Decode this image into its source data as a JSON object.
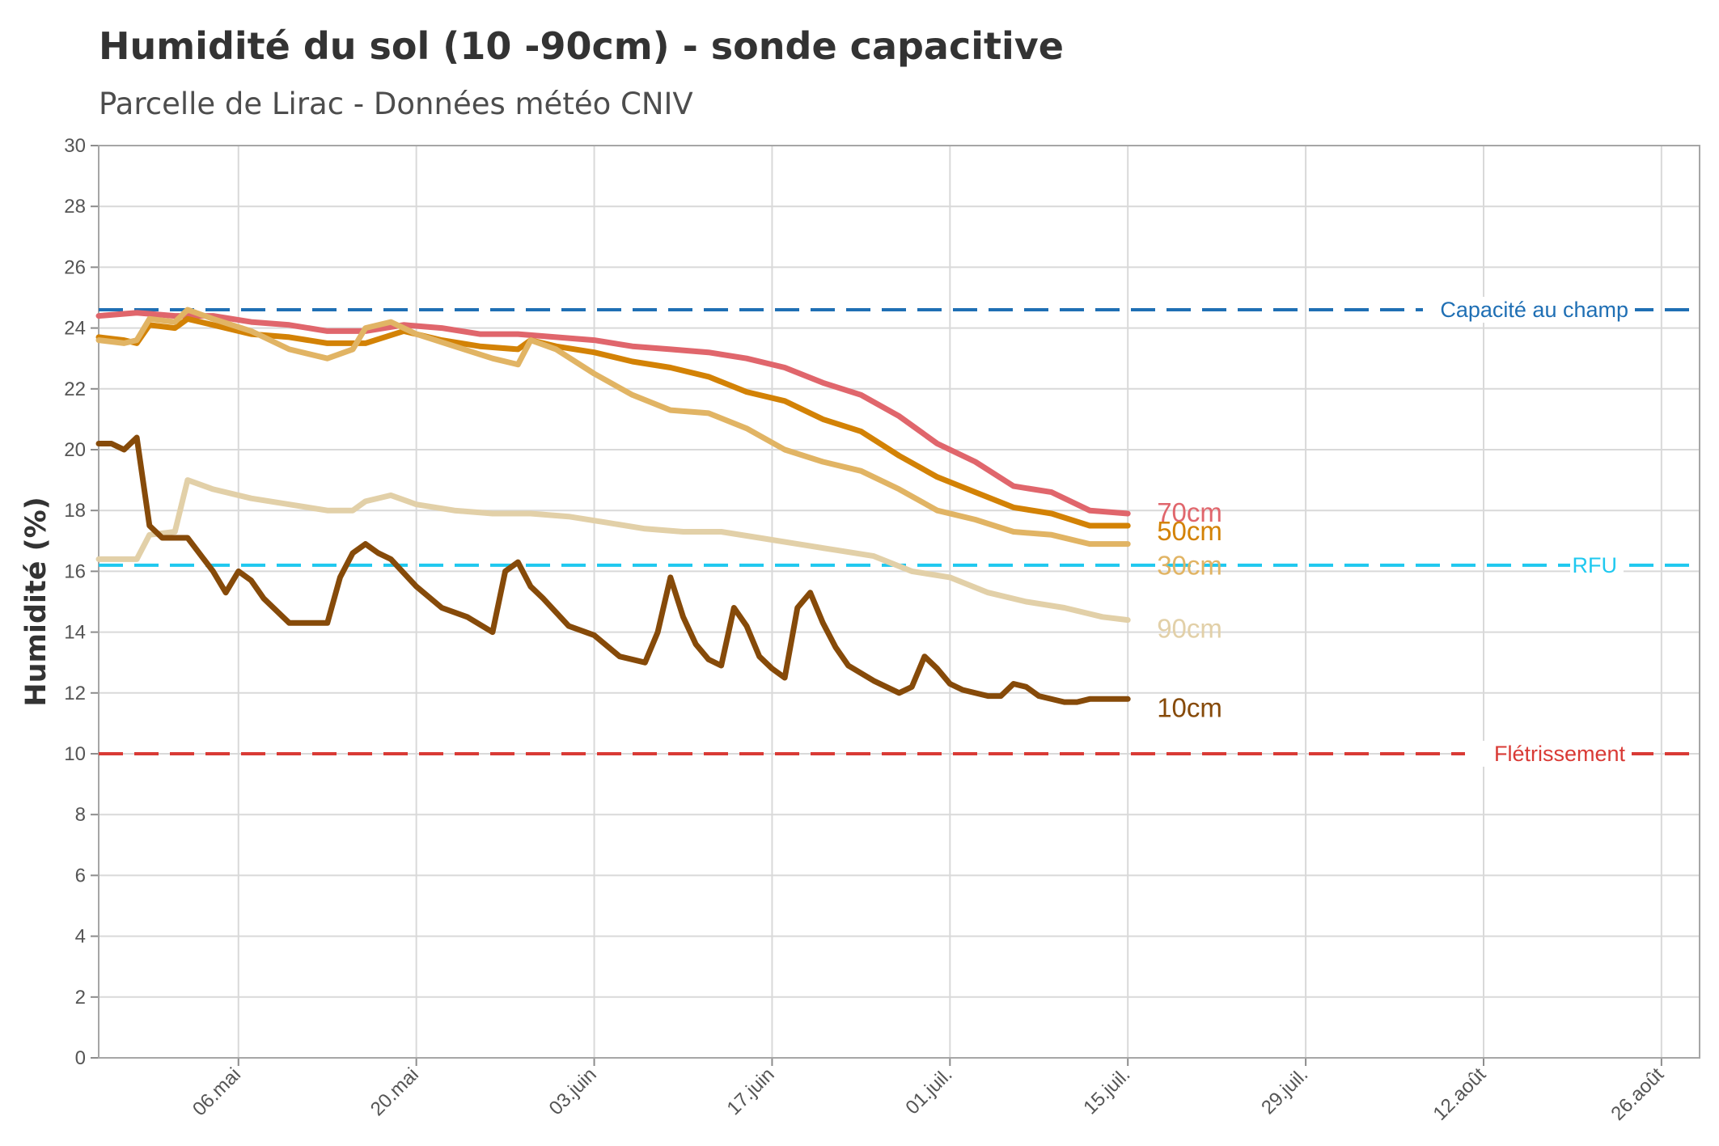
{
  "title": "Humidité du sol (10 -90cm) - sonde capacitive",
  "subtitle": "Parcelle de Lirac - Données météo CNIV",
  "chart_data": {
    "type": "line",
    "title": "Humidité du sol (10 -90cm) - sonde capacitive",
    "subtitle": "Parcelle de Lirac - Données météo CNIV",
    "xlabel": "",
    "ylabel": "Humidité (%)",
    "ylim": [
      0,
      30
    ],
    "xlim": [
      "2023-04-25",
      "2023-08-29"
    ],
    "grid": true,
    "y_ticks": [
      "0",
      "2",
      "4",
      "6",
      "8",
      "10",
      "12",
      "14",
      "16",
      "18",
      "20",
      "22",
      "24",
      "26",
      "28",
      "30"
    ],
    "x_ticks": [
      {
        "date": "2023-05-06",
        "label": "06.mai"
      },
      {
        "date": "2023-05-20",
        "label": "20.mai"
      },
      {
        "date": "2023-06-03",
        "label": "03.juin"
      },
      {
        "date": "2023-06-17",
        "label": "17.juin"
      },
      {
        "date": "2023-07-01",
        "label": "01.juil."
      },
      {
        "date": "2023-07-15",
        "label": "15.juil."
      },
      {
        "date": "2023-07-29",
        "label": "29.juil."
      },
      {
        "date": "2023-08-12",
        "label": "12.août"
      },
      {
        "date": "2023-08-26",
        "label": "26.août"
      }
    ],
    "reference_lines": [
      {
        "name": "Capacité au champ",
        "value": 24.6,
        "color": "#1f6fb4",
        "dash": "long"
      },
      {
        "name": "RFU",
        "value": 16.2,
        "color": "#1fc8ef",
        "dash": "long"
      },
      {
        "name": "Flétrissement",
        "value": 10,
        "color": "#d93a35",
        "dash": "long"
      }
    ],
    "series": [
      {
        "name": "70cm",
        "color": "#e0666c",
        "points": [
          [
            "2023-04-25",
            24.4
          ],
          [
            "2023-04-28",
            24.5
          ],
          [
            "2023-05-01",
            24.4
          ],
          [
            "2023-05-04",
            24.4
          ],
          [
            "2023-05-07",
            24.2
          ],
          [
            "2023-05-10",
            24.1
          ],
          [
            "2023-05-13",
            23.9
          ],
          [
            "2023-05-16",
            23.9
          ],
          [
            "2023-05-19",
            24.1
          ],
          [
            "2023-05-22",
            24.0
          ],
          [
            "2023-05-25",
            23.8
          ],
          [
            "2023-05-28",
            23.8
          ],
          [
            "2023-05-31",
            23.7
          ],
          [
            "2023-06-03",
            23.6
          ],
          [
            "2023-06-06",
            23.4
          ],
          [
            "2023-06-09",
            23.3
          ],
          [
            "2023-06-12",
            23.2
          ],
          [
            "2023-06-15",
            23.0
          ],
          [
            "2023-06-18",
            22.7
          ],
          [
            "2023-06-21",
            22.2
          ],
          [
            "2023-06-24",
            21.8
          ],
          [
            "2023-06-27",
            21.1
          ],
          [
            "2023-06-30",
            20.2
          ],
          [
            "2023-07-03",
            19.6
          ],
          [
            "2023-07-06",
            18.8
          ],
          [
            "2023-07-09",
            18.6
          ],
          [
            "2023-07-12",
            18.0
          ],
          [
            "2023-07-15",
            17.9
          ]
        ]
      },
      {
        "name": "50cm",
        "color": "#d38205",
        "points": [
          [
            "2023-04-25",
            23.7
          ],
          [
            "2023-04-27",
            23.6
          ],
          [
            "2023-04-28",
            23.5
          ],
          [
            "2023-04-29",
            24.1
          ],
          [
            "2023-05-01",
            24.0
          ],
          [
            "2023-05-02",
            24.3
          ],
          [
            "2023-05-04",
            24.1
          ],
          [
            "2023-05-07",
            23.8
          ],
          [
            "2023-05-10",
            23.7
          ],
          [
            "2023-05-13",
            23.5
          ],
          [
            "2023-05-16",
            23.5
          ],
          [
            "2023-05-19",
            23.9
          ],
          [
            "2023-05-22",
            23.6
          ],
          [
            "2023-05-25",
            23.4
          ],
          [
            "2023-05-28",
            23.3
          ],
          [
            "2023-05-29",
            23.6
          ],
          [
            "2023-05-31",
            23.4
          ],
          [
            "2023-06-03",
            23.2
          ],
          [
            "2023-06-06",
            22.9
          ],
          [
            "2023-06-09",
            22.7
          ],
          [
            "2023-06-12",
            22.4
          ],
          [
            "2023-06-15",
            21.9
          ],
          [
            "2023-06-18",
            21.6
          ],
          [
            "2023-06-21",
            21.0
          ],
          [
            "2023-06-24",
            20.6
          ],
          [
            "2023-06-27",
            19.8
          ],
          [
            "2023-06-30",
            19.1
          ],
          [
            "2023-07-03",
            18.6
          ],
          [
            "2023-07-06",
            18.1
          ],
          [
            "2023-07-09",
            17.9
          ],
          [
            "2023-07-12",
            17.5
          ],
          [
            "2023-07-15",
            17.5
          ]
        ]
      },
      {
        "name": "30cm",
        "color": "#e1b464",
        "points": [
          [
            "2023-04-25",
            23.6
          ],
          [
            "2023-04-27",
            23.5
          ],
          [
            "2023-04-28",
            23.6
          ],
          [
            "2023-04-29",
            24.3
          ],
          [
            "2023-05-01",
            24.2
          ],
          [
            "2023-05-02",
            24.6
          ],
          [
            "2023-05-04",
            24.3
          ],
          [
            "2023-05-07",
            23.9
          ],
          [
            "2023-05-10",
            23.3
          ],
          [
            "2023-05-13",
            23.0
          ],
          [
            "2023-05-15",
            23.3
          ],
          [
            "2023-05-16",
            24.0
          ],
          [
            "2023-05-18",
            24.2
          ],
          [
            "2023-05-20",
            23.8
          ],
          [
            "2023-05-23",
            23.4
          ],
          [
            "2023-05-26",
            23.0
          ],
          [
            "2023-05-28",
            22.8
          ],
          [
            "2023-05-29",
            23.6
          ],
          [
            "2023-05-31",
            23.3
          ],
          [
            "2023-06-03",
            22.5
          ],
          [
            "2023-06-06",
            21.8
          ],
          [
            "2023-06-09",
            21.3
          ],
          [
            "2023-06-12",
            21.2
          ],
          [
            "2023-06-15",
            20.7
          ],
          [
            "2023-06-18",
            20.0
          ],
          [
            "2023-06-21",
            19.6
          ],
          [
            "2023-06-24",
            19.3
          ],
          [
            "2023-06-27",
            18.7
          ],
          [
            "2023-06-30",
            18.0
          ],
          [
            "2023-07-03",
            17.7
          ],
          [
            "2023-07-06",
            17.3
          ],
          [
            "2023-07-09",
            17.2
          ],
          [
            "2023-07-12",
            16.9
          ],
          [
            "2023-07-15",
            16.9
          ]
        ]
      },
      {
        "name": "90cm",
        "color": "#e2d0a8",
        "points": [
          [
            "2023-04-25",
            16.4
          ],
          [
            "2023-04-28",
            16.4
          ],
          [
            "2023-04-29",
            17.2
          ],
          [
            "2023-05-01",
            17.3
          ],
          [
            "2023-05-02",
            19.0
          ],
          [
            "2023-05-04",
            18.7
          ],
          [
            "2023-05-07",
            18.4
          ],
          [
            "2023-05-10",
            18.2
          ],
          [
            "2023-05-13",
            18.0
          ],
          [
            "2023-05-15",
            18.0
          ],
          [
            "2023-05-16",
            18.3
          ],
          [
            "2023-05-18",
            18.5
          ],
          [
            "2023-05-20",
            18.2
          ],
          [
            "2023-05-23",
            18.0
          ],
          [
            "2023-05-26",
            17.9
          ],
          [
            "2023-05-29",
            17.9
          ],
          [
            "2023-06-01",
            17.8
          ],
          [
            "2023-06-04",
            17.6
          ],
          [
            "2023-06-07",
            17.4
          ],
          [
            "2023-06-10",
            17.3
          ],
          [
            "2023-06-13",
            17.3
          ],
          [
            "2023-06-16",
            17.1
          ],
          [
            "2023-06-19",
            16.9
          ],
          [
            "2023-06-22",
            16.7
          ],
          [
            "2023-06-25",
            16.5
          ],
          [
            "2023-06-28",
            16.0
          ],
          [
            "2023-07-01",
            15.8
          ],
          [
            "2023-07-04",
            15.3
          ],
          [
            "2023-07-07",
            15.0
          ],
          [
            "2023-07-10",
            14.8
          ],
          [
            "2023-07-13",
            14.5
          ],
          [
            "2023-07-15",
            14.4
          ]
        ]
      },
      {
        "name": "10cm",
        "color": "#864a09",
        "points": [
          [
            "2023-04-25",
            20.2
          ],
          [
            "2023-04-26",
            20.2
          ],
          [
            "2023-04-27",
            20.0
          ],
          [
            "2023-04-28",
            20.4
          ],
          [
            "2023-04-29",
            17.5
          ],
          [
            "2023-04-30",
            17.1
          ],
          [
            "2023-05-01",
            17.1
          ],
          [
            "2023-05-02",
            17.1
          ],
          [
            "2023-05-04",
            16.0
          ],
          [
            "2023-05-05",
            15.3
          ],
          [
            "2023-05-06",
            16.0
          ],
          [
            "2023-05-07",
            15.7
          ],
          [
            "2023-05-08",
            15.1
          ],
          [
            "2023-05-10",
            14.3
          ],
          [
            "2023-05-11",
            14.3
          ],
          [
            "2023-05-13",
            14.3
          ],
          [
            "2023-05-14",
            15.8
          ],
          [
            "2023-05-15",
            16.6
          ],
          [
            "2023-05-16",
            16.9
          ],
          [
            "2023-05-17",
            16.6
          ],
          [
            "2023-05-18",
            16.4
          ],
          [
            "2023-05-20",
            15.5
          ],
          [
            "2023-05-22",
            14.8
          ],
          [
            "2023-05-24",
            14.5
          ],
          [
            "2023-05-26",
            14.0
          ],
          [
            "2023-05-27",
            16.0
          ],
          [
            "2023-05-28",
            16.3
          ],
          [
            "2023-05-29",
            15.5
          ],
          [
            "2023-05-30",
            15.1
          ],
          [
            "2023-06-01",
            14.2
          ],
          [
            "2023-06-03",
            13.9
          ],
          [
            "2023-06-05",
            13.2
          ],
          [
            "2023-06-07",
            13.0
          ],
          [
            "2023-06-08",
            14.0
          ],
          [
            "2023-06-09",
            15.8
          ],
          [
            "2023-06-10",
            14.5
          ],
          [
            "2023-06-11",
            13.6
          ],
          [
            "2023-06-12",
            13.1
          ],
          [
            "2023-06-13",
            12.9
          ],
          [
            "2023-06-14",
            14.8
          ],
          [
            "2023-06-15",
            14.2
          ],
          [
            "2023-06-16",
            13.2
          ],
          [
            "2023-06-17",
            12.8
          ],
          [
            "2023-06-18",
            12.5
          ],
          [
            "2023-06-19",
            14.8
          ],
          [
            "2023-06-20",
            15.3
          ],
          [
            "2023-06-21",
            14.3
          ],
          [
            "2023-06-22",
            13.5
          ],
          [
            "2023-06-23",
            12.9
          ],
          [
            "2023-06-25",
            12.4
          ],
          [
            "2023-06-27",
            12.0
          ],
          [
            "2023-06-28",
            12.2
          ],
          [
            "2023-06-29",
            13.2
          ],
          [
            "2023-06-30",
            12.8
          ],
          [
            "2023-07-01",
            12.3
          ],
          [
            "2023-07-02",
            12.1
          ],
          [
            "2023-07-04",
            11.9
          ],
          [
            "2023-07-05",
            11.9
          ],
          [
            "2023-07-06",
            12.3
          ],
          [
            "2023-07-07",
            12.2
          ],
          [
            "2023-07-08",
            11.9
          ],
          [
            "2023-07-10",
            11.7
          ],
          [
            "2023-07-11",
            11.7
          ],
          [
            "2023-07-12",
            11.8
          ],
          [
            "2023-07-15",
            11.8
          ]
        ]
      }
    ]
  }
}
